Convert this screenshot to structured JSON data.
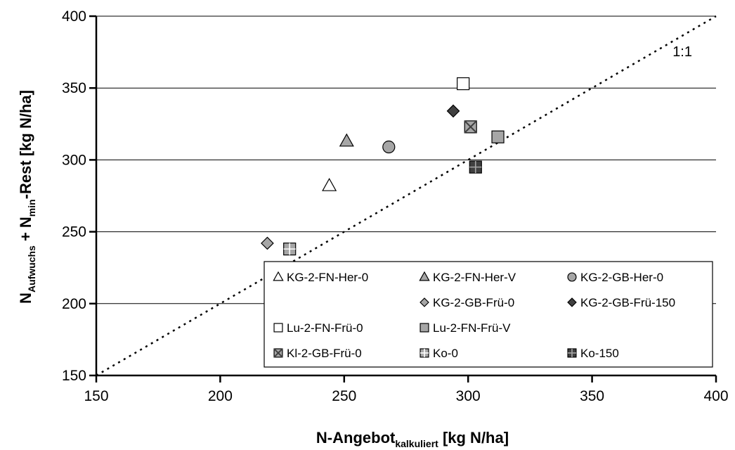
{
  "chart_data": {
    "type": "scatter",
    "title": "",
    "xlabel": {
      "main": "N-Angebot",
      "sub": "kalkuliert",
      "unit": " [kg N/ha]"
    },
    "ylabel": {
      "prefix": "N",
      "sub1": "Aufwuchs",
      "mid": " + N",
      "sub2": "min",
      "suffix": "-Rest [kg N/ha]"
    },
    "xlim": [
      150,
      400
    ],
    "ylim": [
      150,
      400
    ],
    "xticks": [
      150,
      200,
      250,
      300,
      350,
      400
    ],
    "yticks": [
      150,
      200,
      250,
      300,
      350,
      400
    ],
    "grid": "horizontal",
    "reference_line": {
      "label": "1:1",
      "from": [
        150,
        150
      ],
      "to": [
        400,
        400
      ],
      "style": "dotted"
    },
    "legend_position": "bottom-right",
    "series": [
      {
        "name": "KG-2-FN-Her-0",
        "marker": "triangle",
        "fill": "#ffffff",
        "x": [
          244
        ],
        "y": [
          282
        ]
      },
      {
        "name": "KG-2-FN-Her-V",
        "marker": "triangle",
        "fill": "#a6a6a6",
        "x": [
          251
        ],
        "y": [
          313
        ]
      },
      {
        "name": "KG-2-GB-Her-0",
        "marker": "circle",
        "fill": "#a6a6a6",
        "x": [
          268
        ],
        "y": [
          309
        ]
      },
      {
        "name": "",
        "marker": "none",
        "fill": "",
        "x": [],
        "y": []
      },
      {
        "name": "KG-2-GB-Frü-0",
        "marker": "diamond",
        "fill": "#a6a6a6",
        "x": [
          219
        ],
        "y": [
          242
        ]
      },
      {
        "name": "KG-2-GB-Frü-150",
        "marker": "diamond",
        "fill": "#404040",
        "x": [
          294
        ],
        "y": [
          334
        ]
      },
      {
        "name": "Lu-2-FN-Frü-0",
        "marker": "square",
        "fill": "#ffffff",
        "x": [
          298
        ],
        "y": [
          353
        ]
      },
      {
        "name": "Lu-2-FN-Frü-V",
        "marker": "square",
        "fill": "#a6a6a6",
        "x": [
          312
        ],
        "y": [
          316
        ]
      },
      {
        "name": "",
        "marker": "none",
        "fill": "",
        "x": [],
        "y": []
      },
      {
        "name": "Kl-2-GB-Frü-0",
        "marker": "square-x",
        "fill": "#a6a6a6",
        "x": [
          301
        ],
        "y": [
          323
        ]
      },
      {
        "name": "Ko-0",
        "marker": "square-plus",
        "fill": "#a6a6a6",
        "x": [
          228
        ],
        "y": [
          238
        ]
      },
      {
        "name": "Ko-150",
        "marker": "square-plus",
        "fill": "#404040",
        "x": [
          303
        ],
        "y": [
          295
        ]
      }
    ]
  }
}
